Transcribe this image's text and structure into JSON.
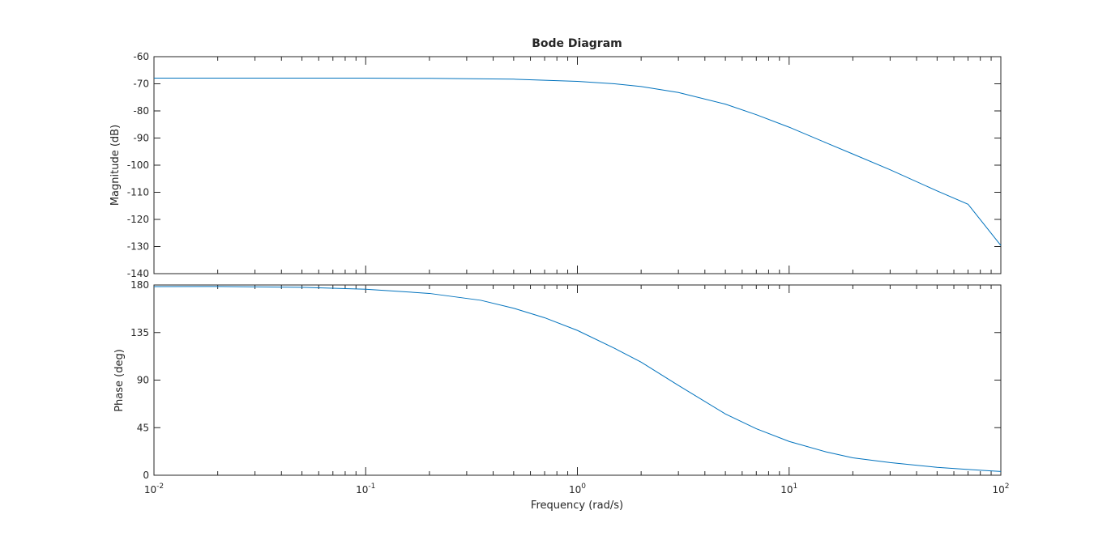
{
  "chart_data": {
    "type": "line",
    "title": "Bode Diagram",
    "xlabel": "Frequency  (rad/s)",
    "xscale": "log",
    "xlim": [
      0.01,
      100
    ],
    "x_ticks": [
      {
        "value": 0.01,
        "base": "10",
        "exp": "-2"
      },
      {
        "value": 0.1,
        "base": "10",
        "exp": "-1"
      },
      {
        "value": 1,
        "base": "10",
        "exp": "0"
      },
      {
        "value": 10,
        "base": "10",
        "exp": "1"
      },
      {
        "value": 100,
        "base": "10",
        "exp": "2"
      }
    ],
    "grid": false,
    "line_color": "#0072bd",
    "panels": [
      {
        "ylabel": "Magnitude (dB)",
        "ylim": [
          -140,
          -60
        ],
        "yticks": [
          "-60",
          "-70",
          "-80",
          "-90",
          "-100",
          "-110",
          "-120",
          "-130",
          "-140"
        ],
        "series": [
          {
            "x": [
              0.01,
              0.02,
              0.05,
              0.1,
              0.2,
              0.5,
              1,
              1.5,
              2,
              3,
              5,
              7,
              10,
              15,
              20,
              30,
              50,
              70,
              100
            ],
            "y": [
              -67.9,
              -67.9,
              -67.9,
              -67.9,
              -68.0,
              -68.3,
              -69.1,
              -70.0,
              -71.0,
              -73.2,
              -77.5,
              -81.4,
              -86.0,
              -91.8,
              -95.9,
              -101.7,
              -109.5,
              -114.4,
              -129.6
            ]
          }
        ]
      },
      {
        "ylabel": "Phase (deg)",
        "ylim": [
          0,
          180
        ],
        "yticks": [
          "0",
          "45",
          "90",
          "135",
          "180"
        ],
        "series": [
          {
            "x": [
              0.01,
              0.02,
              0.05,
              0.1,
              0.2,
              0.35,
              0.5,
              0.7,
              1,
              1.5,
              2,
              3,
              5,
              7,
              10,
              15,
              20,
              30,
              50,
              70,
              100
            ],
            "y": [
              178.5,
              178.6,
              177.8,
              176.0,
              172.0,
              165.5,
              158.0,
              149.0,
              137.0,
              120.0,
              107.0,
              85.0,
              58.0,
              44.0,
              32.0,
              22.0,
              16.5,
              12.0,
              7.5,
              5.5,
              3.5
            ]
          }
        ]
      }
    ]
  }
}
